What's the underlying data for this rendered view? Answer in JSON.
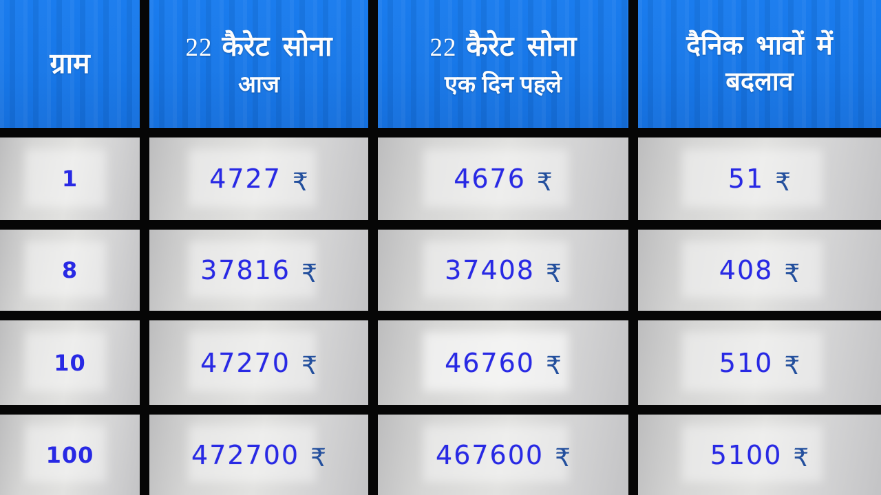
{
  "currency": {
    "symbol": "₹"
  },
  "colors": {
    "header_blue": "#1777e8",
    "grid_black": "#060606",
    "cell_gray": "#d6d6d5",
    "number_blue": "#2829e4",
    "rupee_blue": "#234f9d",
    "header_text": "#fdfdfd"
  },
  "header": {
    "gram": {
      "title": "ग्राम"
    },
    "today": {
      "prefix": "22",
      "title": "कैरेट सोना",
      "subtitle": "आज"
    },
    "yesterday": {
      "prefix": "22",
      "title": "कैरेट सोना",
      "subtitle": "एक दिन पहले"
    },
    "change": {
      "title": "दैनिक भावों में",
      "subtitle": "बदलाव"
    }
  },
  "table": {
    "rows": [
      {
        "gram": "1",
        "today": "4727",
        "yesterday": "4676",
        "change": "51"
      },
      {
        "gram": "8",
        "today": "37816",
        "yesterday": "37408",
        "change": "408"
      },
      {
        "gram": "10",
        "today": "47270",
        "yesterday": "46760",
        "change": "510"
      },
      {
        "gram": "100",
        "today": "472700",
        "yesterday": "467600",
        "change": "5100"
      }
    ]
  },
  "chart_data": {
    "type": "table",
    "columns": [
      "ग्राम",
      "22 कैरेट सोना आज",
      "22 कैरेट सोना एक दिन पहले",
      "दैनिक भावों में बदलाव"
    ],
    "rows": [
      [
        1,
        4727,
        4676,
        51
      ],
      [
        8,
        37816,
        37408,
        408
      ],
      [
        10,
        47270,
        46760,
        510
      ],
      [
        100,
        472700,
        467600,
        5100
      ]
    ],
    "units": "₹",
    "notes": "Hindi gold-rate table: 22 carat gold price per gram, today vs one day before, with daily change"
  }
}
